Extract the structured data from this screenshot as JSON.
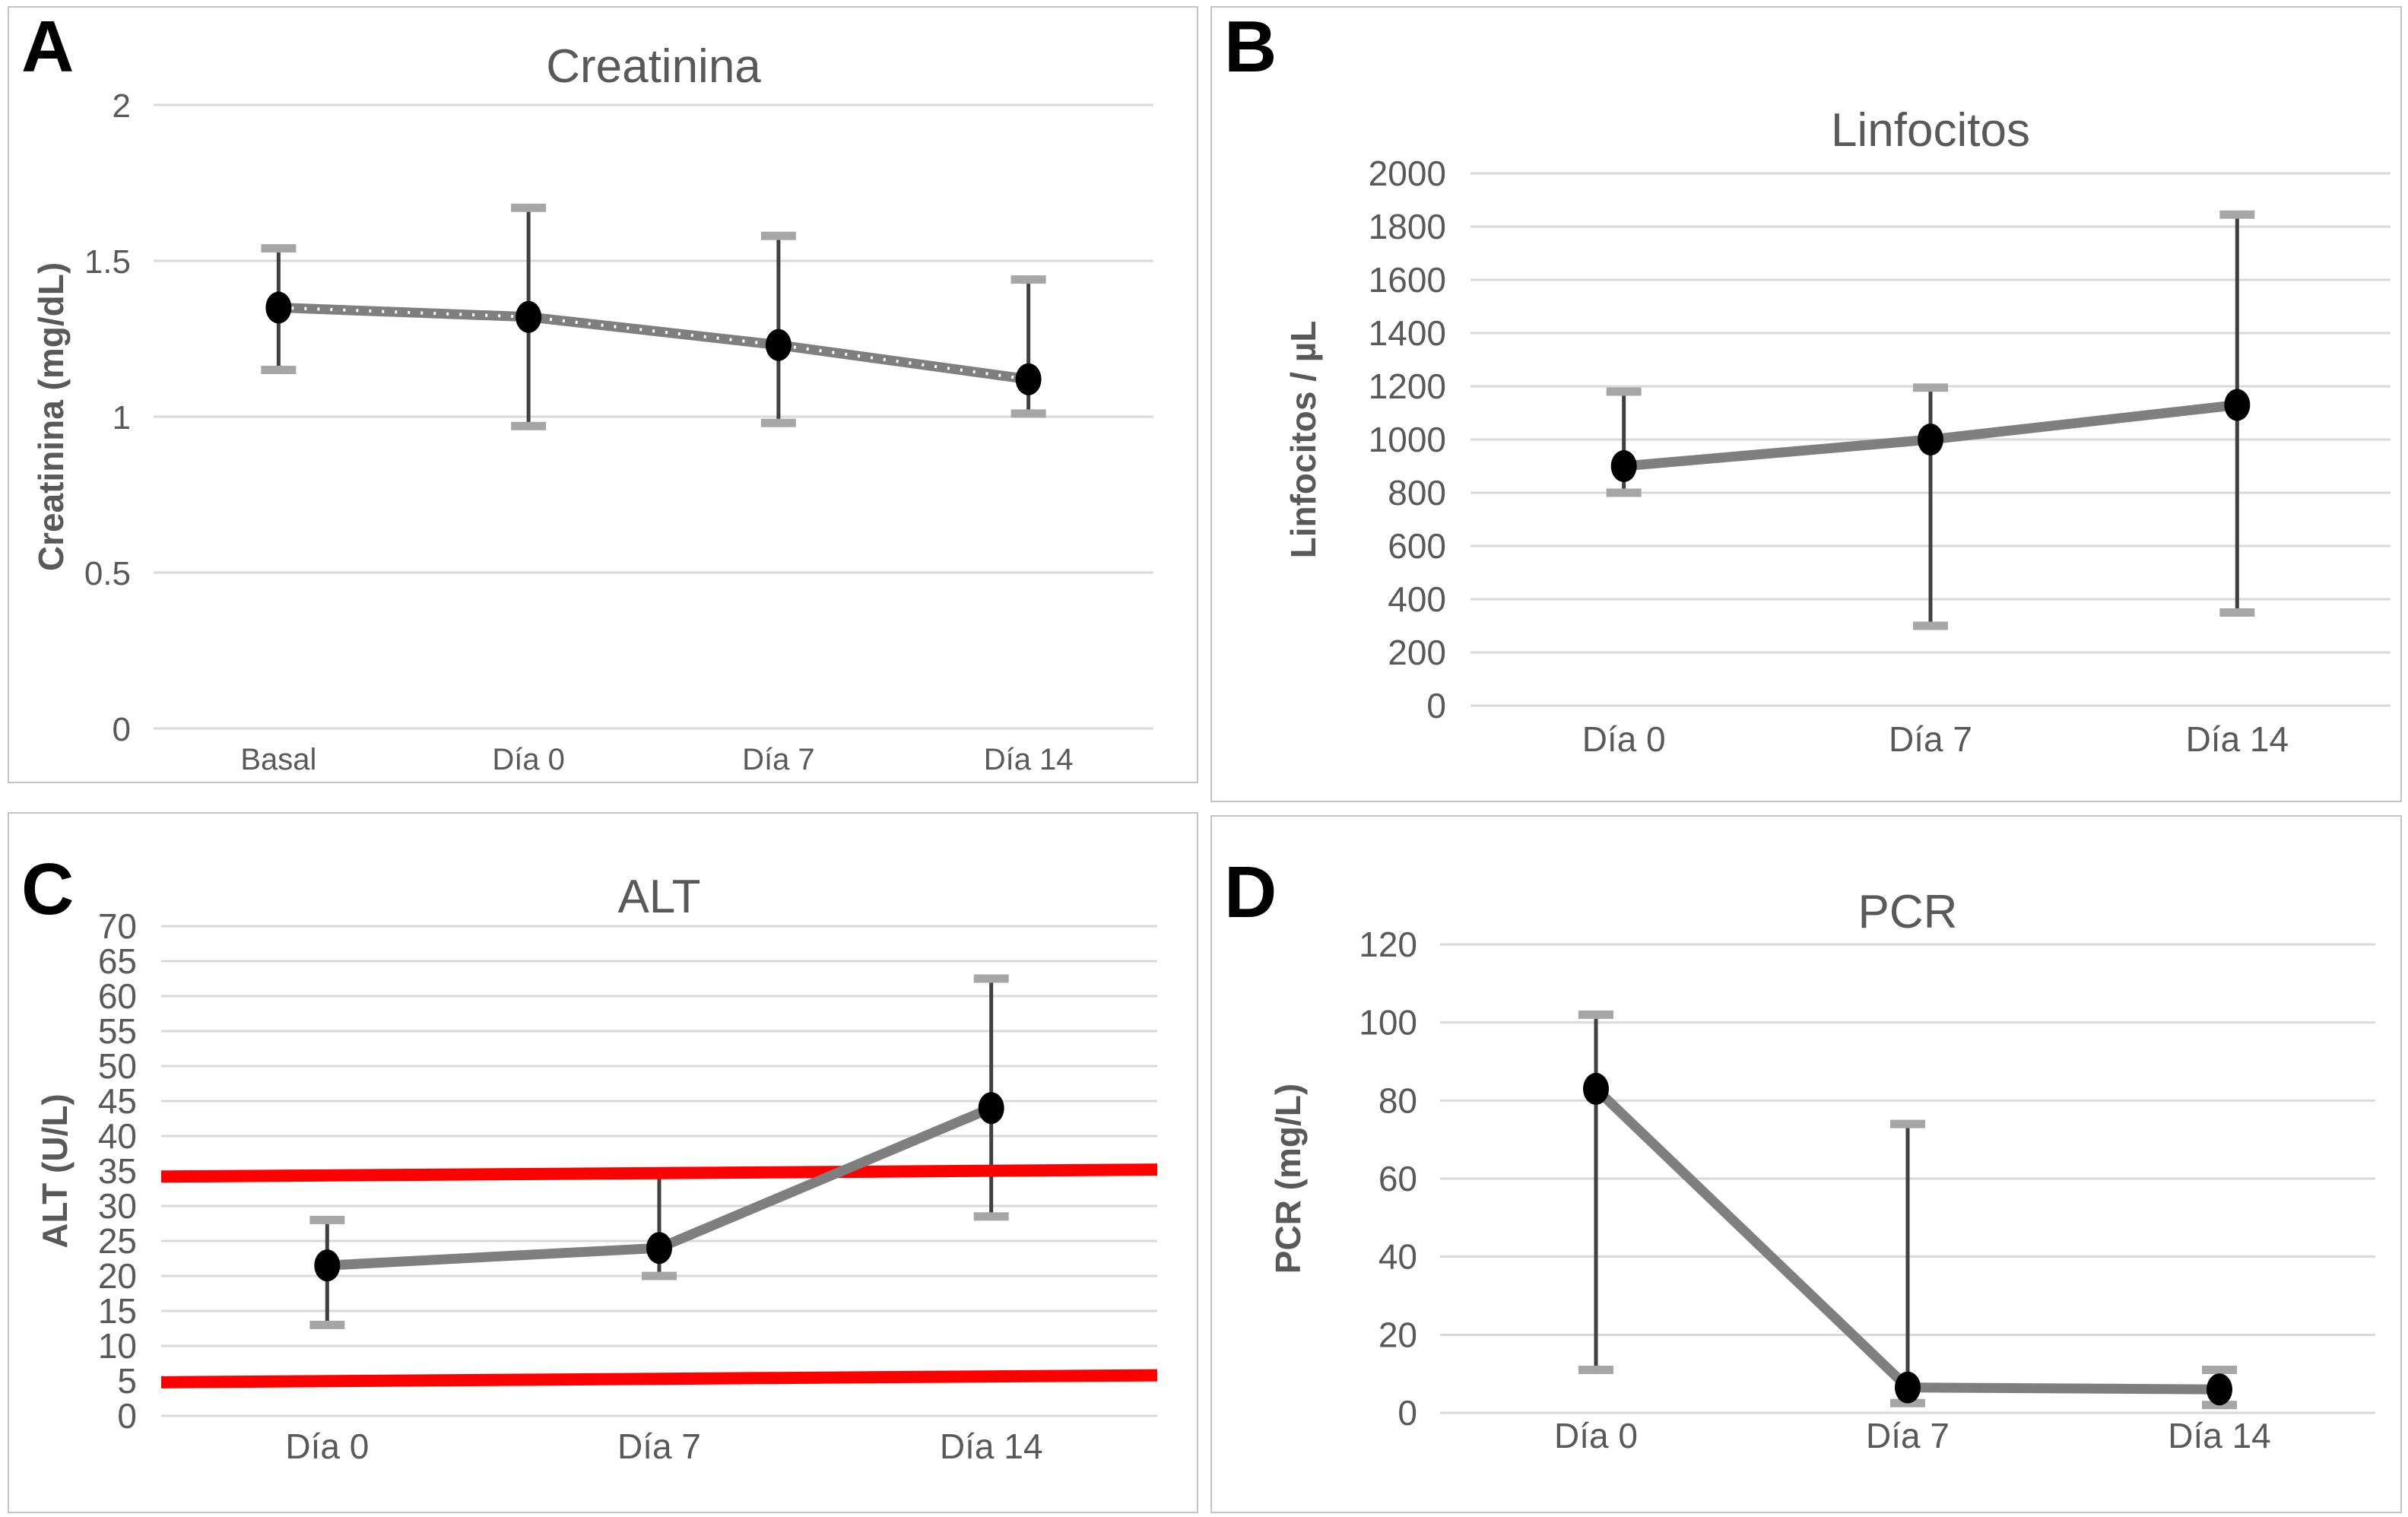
{
  "colors": {
    "line": "#7f7f7f",
    "marker": "#000000",
    "error_bar": "#404040",
    "error_cap": "#a6a6a6",
    "gridline": "#d9d9d9",
    "reference_line": "#ff0000",
    "text": "#595959",
    "panel_border": "#c3c3c3",
    "panel_letter": "#000000"
  },
  "chart_data": [
    {
      "panel_label": "A",
      "type": "line",
      "title": "Creatinina",
      "ylabel": "Creatinina (mg/dL)",
      "xlabel": "",
      "categories": [
        "Basal",
        "Día 0",
        "Día 7",
        "Día 14"
      ],
      "ylim": [
        0,
        2
      ],
      "yticks": [
        0,
        0.5,
        1,
        1.5,
        2
      ],
      "ytick_labels": [
        "0",
        "0.5",
        "1",
        "1.5",
        "2"
      ],
      "grid": true,
      "legend": false,
      "series": [
        {
          "name": "Creatinina",
          "values": [
            1.35,
            1.32,
            1.23,
            1.12
          ],
          "err_low": [
            1.15,
            0.97,
            0.98,
            1.01
          ],
          "err_high": [
            1.54,
            1.67,
            1.58,
            1.44
          ],
          "marker": "filled-circle",
          "line_style": "thick-gray-with-white-dotted-overlay"
        }
      ]
    },
    {
      "panel_label": "B",
      "type": "line",
      "title": "Linfocitos",
      "ylabel": "Linfocitos / µL",
      "xlabel": "",
      "categories": [
        "Día 0",
        "Día 7",
        "Día 14"
      ],
      "ylim": [
        0,
        2000
      ],
      "yticks": [
        0,
        200,
        400,
        600,
        800,
        1000,
        1200,
        1400,
        1600,
        1800,
        2000
      ],
      "ytick_labels": [
        "0",
        "200",
        "400",
        "600",
        "800",
        "1000",
        "1200",
        "1400",
        "1600",
        "1800",
        "2000"
      ],
      "grid": true,
      "legend": false,
      "series": [
        {
          "name": "Linfocitos",
          "values": [
            900,
            1000,
            1130
          ],
          "err_low": [
            800,
            300,
            350
          ],
          "err_high": [
            1180,
            1195,
            1845
          ],
          "marker": "filled-circle",
          "line_style": "thick-gray"
        }
      ]
    },
    {
      "panel_label": "C",
      "type": "line",
      "title": "ALT",
      "ylabel": "ALT (U/L)",
      "xlabel": "",
      "categories": [
        "Día 0",
        "Día 7",
        "Día 14"
      ],
      "ylim": [
        0,
        70
      ],
      "yticks": [
        0,
        5,
        10,
        15,
        20,
        25,
        30,
        35,
        40,
        45,
        50,
        55,
        60,
        65,
        70
      ],
      "ytick_labels": [
        "0",
        "5",
        "10",
        "15",
        "20",
        "25",
        "30",
        "35",
        "40",
        "45",
        "50",
        "55",
        "60",
        "65",
        "70"
      ],
      "grid": true,
      "legend": false,
      "ref_lines": [
        {
          "y_start": 34.2,
          "y_end": 35.2
        },
        {
          "y_start": 4.8,
          "y_end": 5.8
        }
      ],
      "series": [
        {
          "name": "ALT",
          "values": [
            21.5,
            24,
            44
          ],
          "err_low": [
            13,
            20,
            28.5
          ],
          "err_high": [
            28,
            34.5,
            62.5
          ],
          "marker": "filled-circle",
          "line_style": "thick-gray"
        }
      ]
    },
    {
      "panel_label": "D",
      "type": "line",
      "title": "PCR",
      "ylabel": "PCR (mg/L)",
      "xlabel": "",
      "categories": [
        "Día 0",
        "Día 7",
        "Día 14"
      ],
      "ylim": [
        0,
        120
      ],
      "yticks": [
        0,
        20,
        40,
        60,
        80,
        100,
        120
      ],
      "ytick_labels": [
        "0",
        "20",
        "40",
        "60",
        "80",
        "100",
        "120"
      ],
      "grid": true,
      "legend": false,
      "series": [
        {
          "name": "PCR",
          "values": [
            83,
            6.5,
            6
          ],
          "err_low": [
            11,
            2.5,
            2
          ],
          "err_high": [
            102,
            74,
            11
          ],
          "marker": "filled-circle",
          "line_style": "thick-gray"
        }
      ]
    }
  ]
}
